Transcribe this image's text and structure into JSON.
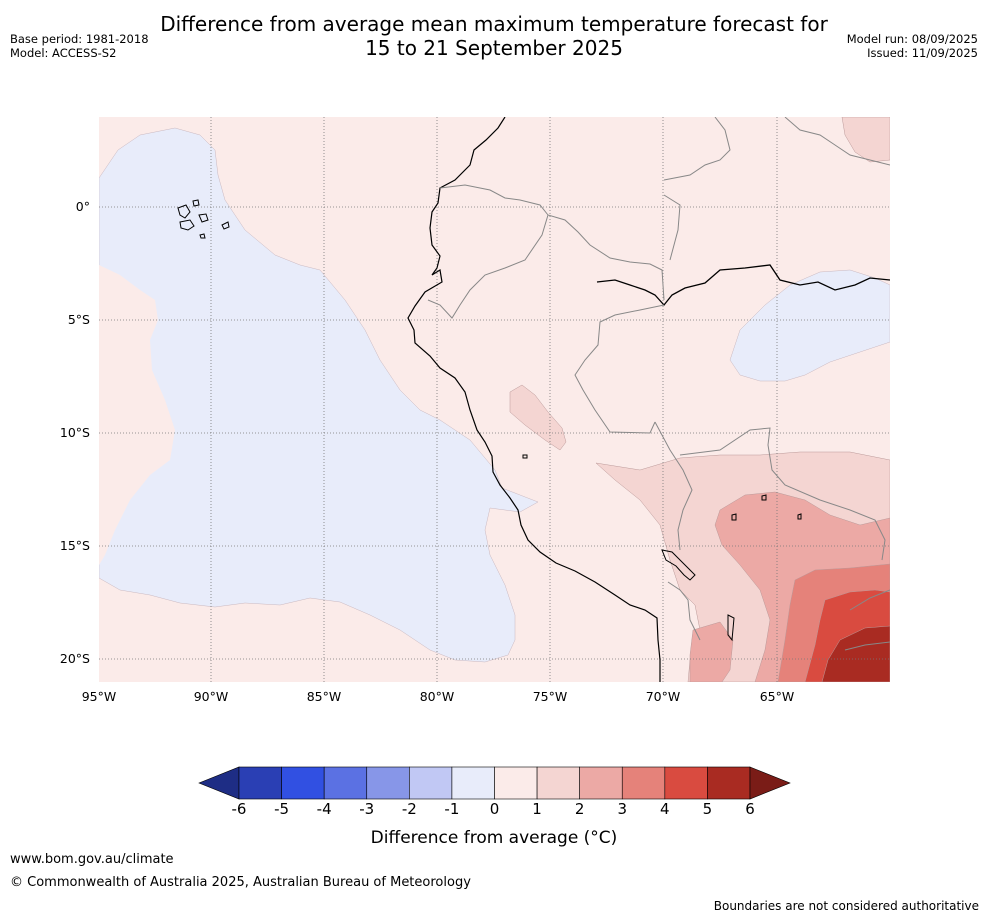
{
  "title_line1": "Difference from average mean maximum temperature forecast for",
  "title_line2": "15 to 21 September 2025",
  "meta_left": {
    "base_period": "Base period: 1981-2018",
    "model": "Model: ACCESS-S2"
  },
  "meta_right": {
    "model_run": "Model run: 08/09/2025",
    "issued": "Issued: 11/09/2025"
  },
  "map": {
    "lat_labels": [
      "0°",
      "5°S",
      "10°S",
      "15°S",
      "20°S"
    ],
    "lon_labels": [
      "95°W",
      "90°W",
      "85°W",
      "80°W",
      "75°W",
      "70°W",
      "65°W"
    ],
    "colors": {
      "neutral_warm": "#fbebe9",
      "neutral_cool": "#e8ecfa",
      "warm_1_2": "#f4d5d2",
      "warm_2_3": "#eca9a5",
      "warm_3_4": "#e5827a",
      "warm_4_5": "#d94b40",
      "warm_5_6": "#a92b22"
    }
  },
  "colorbar": {
    "ticks": [
      "-6",
      "-5",
      "-4",
      "-3",
      "-2",
      "-1",
      "0",
      "1",
      "2",
      "3",
      "4",
      "5",
      "6"
    ],
    "colors": [
      "#1e2d85",
      "#2a3fb4",
      "#3150e2",
      "#5b71e3",
      "#8796e8",
      "#c1c8f4",
      "#e8ecfa",
      "#fbebe9",
      "#f4d5d2",
      "#eca9a5",
      "#e5827a",
      "#d94b40",
      "#a92b22",
      "#7a1c17"
    ],
    "label": "Difference from average (°C)"
  },
  "footer": {
    "url": "www.bom.gov.au/climate",
    "copyright": "© Commonwealth of Australia 2025, Australian Bureau of Meteorology",
    "note": "Boundaries are not considered authoritative"
  }
}
